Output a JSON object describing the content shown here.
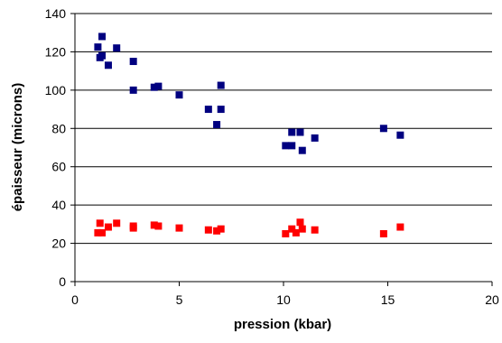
{
  "chart_data": {
    "type": "scatter",
    "title": "",
    "xlabel": "pression (kbar)",
    "ylabel": "épaisseur (microns)",
    "xlim": [
      0,
      20
    ],
    "ylim": [
      0,
      140
    ],
    "x_ticks": [
      0,
      5,
      10,
      15,
      20
    ],
    "y_ticks": [
      0,
      20,
      40,
      60,
      80,
      100,
      120,
      140
    ],
    "grid": "horizontal",
    "legend": "none",
    "marker": "square",
    "series": [
      {
        "color": "#000080",
        "points": [
          [
            1.1,
            122.5
          ],
          [
            1.2,
            117.0
          ],
          [
            1.3,
            128.0
          ],
          [
            1.3,
            118.0
          ],
          [
            1.6,
            113.0
          ],
          [
            2.0,
            122.0
          ],
          [
            2.8,
            115.0
          ],
          [
            2.8,
            100.0
          ],
          [
            3.8,
            101.5
          ],
          [
            4.0,
            102.0
          ],
          [
            5.0,
            97.5
          ],
          [
            6.4,
            90.0
          ],
          [
            6.8,
            82.0
          ],
          [
            7.0,
            102.5
          ],
          [
            7.0,
            90.0
          ],
          [
            10.1,
            71.0
          ],
          [
            10.4,
            78.0
          ],
          [
            10.4,
            71.0
          ],
          [
            10.8,
            78.0
          ],
          [
            10.9,
            68.5
          ],
          [
            11.5,
            75.0
          ],
          [
            14.8,
            80.0
          ],
          [
            15.6,
            76.5
          ]
        ]
      },
      {
        "color": "#FF0000",
        "points": [
          [
            1.1,
            25.5
          ],
          [
            1.2,
            30.5
          ],
          [
            1.3,
            25.5
          ],
          [
            1.6,
            28.5
          ],
          [
            2.0,
            30.5
          ],
          [
            2.8,
            29.0
          ],
          [
            2.8,
            28.0
          ],
          [
            3.8,
            29.5
          ],
          [
            4.0,
            29.0
          ],
          [
            5.0,
            28.0
          ],
          [
            6.4,
            27.0
          ],
          [
            6.8,
            26.5
          ],
          [
            7.0,
            27.5
          ],
          [
            10.1,
            25.0
          ],
          [
            10.4,
            27.5
          ],
          [
            10.6,
            25.5
          ],
          [
            10.8,
            31.0
          ],
          [
            10.9,
            27.5
          ],
          [
            11.5,
            27.0
          ],
          [
            14.8,
            25.0
          ],
          [
            15.6,
            28.5
          ]
        ]
      }
    ]
  }
}
